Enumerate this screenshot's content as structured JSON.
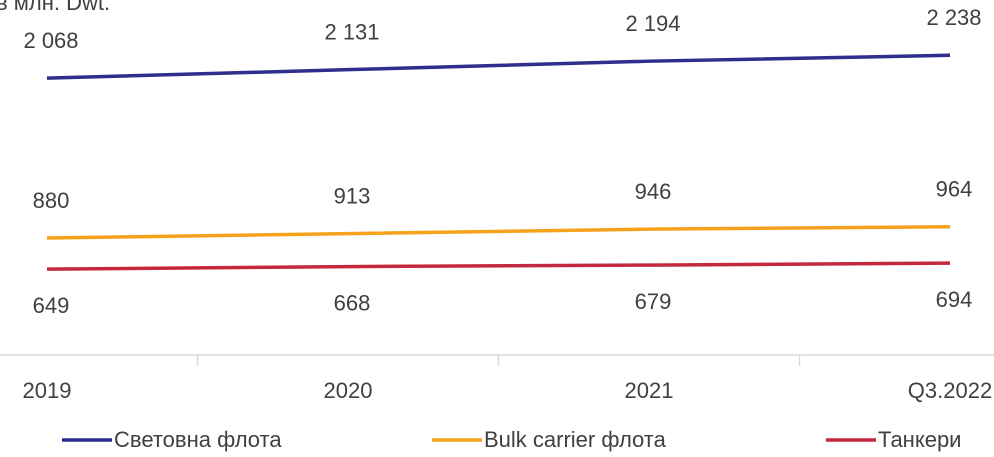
{
  "chart_data": {
    "type": "line",
    "title": "в млн. Dwt.",
    "categories": [
      "2019",
      "2020",
      "2021",
      "Q3.2022"
    ],
    "series": [
      {
        "name": "Световна флота",
        "color": "#2e2e8c",
        "values": [
          2068,
          2131,
          2194,
          2238
        ],
        "value_labels": [
          "2 068",
          "2 131",
          "2 194",
          "2 238"
        ]
      },
      {
        "name": "Bulk carrier флота",
        "color": "#f5a21d",
        "values": [
          880,
          913,
          946,
          964
        ]
      },
      {
        "name": "Танкери",
        "color": "#c3283e",
        "values": [
          649,
          668,
          679,
          694
        ]
      }
    ],
    "ylim": [
      0,
      2500
    ]
  }
}
